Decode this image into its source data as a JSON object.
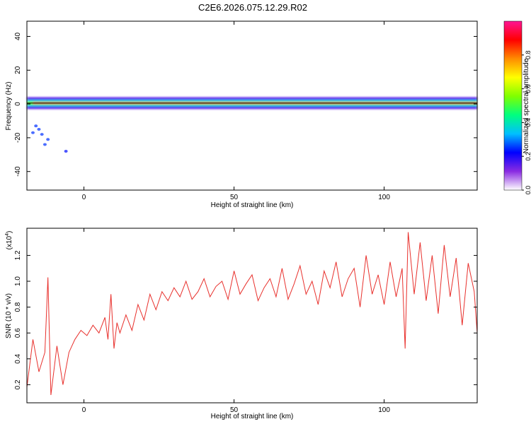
{
  "title": "C2E6.2026.075.12.29.R02",
  "colors": {
    "snr_line": "#e8302c",
    "frame": "#000000",
    "centerline": "#000000"
  },
  "chart_data": [
    {
      "type": "heatmap",
      "name": "spectrogram",
      "xlabel": "Height of straight line (km)",
      "ylabel": "Frequency (Hz)",
      "xlim": [
        -19,
        131
      ],
      "ylim": [
        -51,
        49
      ],
      "xticks": [
        0,
        50,
        100
      ],
      "xtick_labels": [
        "0",
        "50",
        "100"
      ],
      "yticks": [
        -40,
        -20,
        0,
        20,
        40
      ],
      "ytick_labels": [
        "-40",
        "-20",
        "0",
        "20",
        "40"
      ],
      "center_frequency_hz": 0.5,
      "colorbar": {
        "label": "Normalized spectral amplitude",
        "range": [
          0,
          1
        ],
        "ticks": [
          0.0,
          0.2,
          0.4,
          0.6,
          0.8
        ],
        "tick_labels": [
          "0.0",
          "0.2",
          "0.4",
          "0.6",
          "0.8"
        ],
        "colormap": [
          "#ffffff",
          "#8a2be2",
          "#0000ff",
          "#00bfff",
          "#00ff7f",
          "#7fff00",
          "#ffff00",
          "#ff8c00",
          "#ff0000",
          "#ff1493"
        ]
      },
      "bands": [
        {
          "x": [
            -19,
            131
          ],
          "f": [
            -3,
            4
          ],
          "amplitude": 0.15
        },
        {
          "x": [
            -19,
            131
          ],
          "f": [
            -1.5,
            2.5
          ],
          "amplitude": 0.35
        },
        {
          "x": [
            -19,
            131
          ],
          "f": [
            -0.5,
            1.5
          ],
          "amplitude": 0.55
        },
        {
          "x": [
            -17,
            131
          ],
          "f": [
            0,
            1
          ],
          "amplitude": 0.95
        }
      ],
      "scatter_points": [
        {
          "x": -16,
          "f": -13,
          "amplitude": 0.1
        },
        {
          "x": -15,
          "f": -15,
          "amplitude": 0.1
        },
        {
          "x": -17,
          "f": -17,
          "amplitude": 0.1
        },
        {
          "x": -14,
          "f": -18,
          "amplitude": 0.1
        },
        {
          "x": -12,
          "f": -21,
          "amplitude": 0.1
        },
        {
          "x": -13,
          "f": -24,
          "amplitude": 0.1
        },
        {
          "x": -6,
          "f": -28,
          "amplitude": 0.08
        }
      ]
    },
    {
      "type": "line",
      "name": "snr",
      "xlabel": "Height of straight line (km)",
      "ylabel": "SNR (10 * v/v)",
      "scale_label": "(x10",
      "scale_exponent": "4",
      "xlim": [
        -19,
        131
      ],
      "ylim": [
        0.06,
        1.41
      ],
      "xticks": [
        0,
        50,
        100
      ],
      "xtick_labels": [
        "0",
        "50",
        "100"
      ],
      "yticks": [
        0.2,
        0.4,
        0.6,
        0.8,
        1.0,
        1.2
      ],
      "ytick_labels": [
        "0.2",
        "0.4",
        "0.6",
        "0.8",
        "1.0",
        "1.2"
      ],
      "series": [
        {
          "name": "SNR",
          "x": [
            -19,
            -17,
            -15,
            -13,
            -12,
            -11,
            -9,
            -7,
            -5,
            -3,
            -1,
            1,
            3,
            5,
            7,
            8,
            9,
            10,
            11,
            12,
            14,
            16,
            18,
            20,
            22,
            24,
            26,
            28,
            30,
            32,
            34,
            36,
            38,
            40,
            42,
            44,
            46,
            48,
            50,
            52,
            54,
            56,
            58,
            60,
            62,
            64,
            66,
            68,
            70,
            72,
            74,
            76,
            78,
            80,
            82,
            84,
            86,
            88,
            90,
            92,
            94,
            96,
            98,
            100,
            102,
            104,
            106,
            107,
            108,
            110,
            112,
            114,
            116,
            118,
            120,
            122,
            124,
            126,
            128,
            130,
            131
          ],
          "values": [
            0.18,
            0.55,
            0.3,
            0.45,
            1.03,
            0.12,
            0.5,
            0.2,
            0.45,
            0.55,
            0.62,
            0.58,
            0.66,
            0.6,
            0.72,
            0.55,
            0.9,
            0.48,
            0.68,
            0.6,
            0.74,
            0.62,
            0.82,
            0.7,
            0.9,
            0.78,
            0.92,
            0.85,
            0.95,
            0.88,
            1.0,
            0.86,
            0.92,
            1.02,
            0.88,
            0.96,
            1.0,
            0.86,
            1.08,
            0.9,
            0.98,
            1.05,
            0.85,
            0.95,
            1.02,
            0.88,
            1.1,
            0.86,
            0.98,
            1.12,
            0.9,
            1.0,
            0.82,
            1.08,
            0.95,
            1.15,
            0.88,
            1.02,
            1.1,
            0.8,
            1.2,
            0.9,
            1.05,
            0.82,
            1.15,
            0.88,
            1.1,
            0.48,
            1.38,
            0.9,
            1.3,
            0.85,
            1.2,
            0.75,
            1.28,
            0.88,
            1.18,
            0.66,
            1.14,
            0.92,
            0.6
          ]
        }
      ]
    }
  ]
}
